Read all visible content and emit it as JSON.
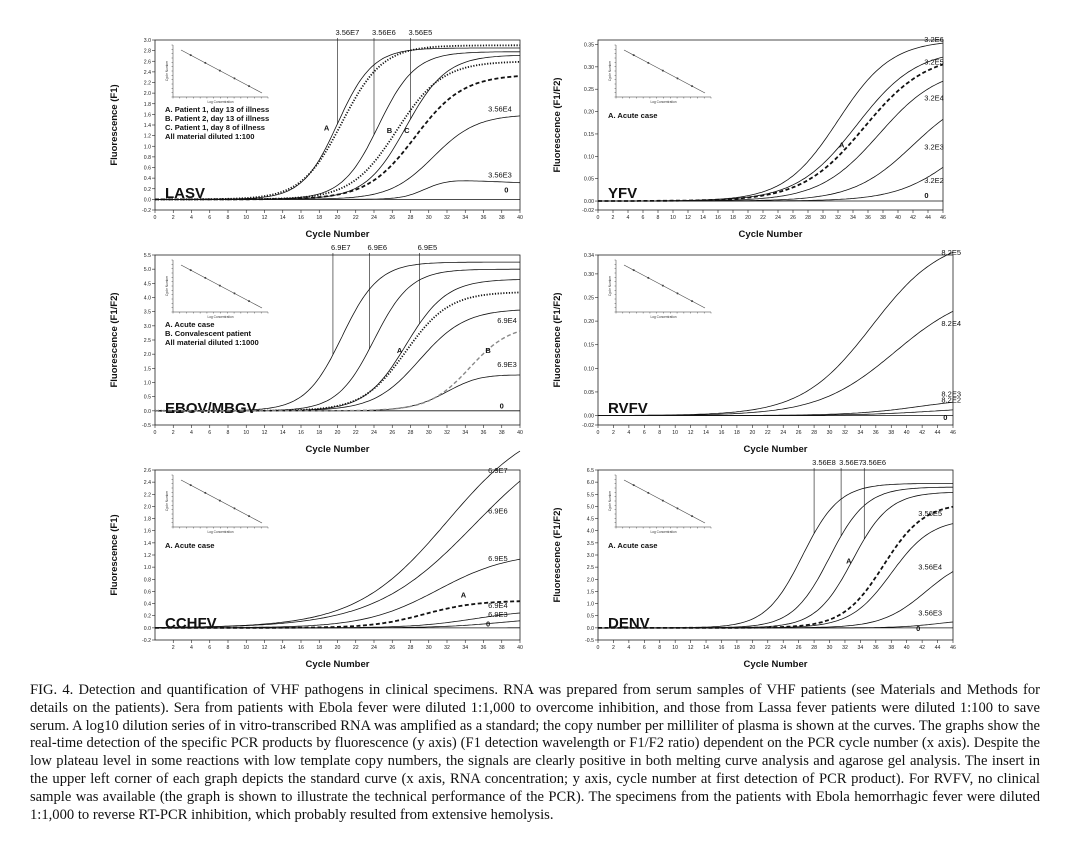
{
  "figure_caption": {
    "lines": [
      "FIG. 4. Detection and quantification of VHF pathogens in clinical specimens. RNA was prepared from serum samples of VHF patients (see",
      "Materials and Methods for details on the patients). Sera from patients with Ebola fever were diluted 1:1,000 to overcome inhibition, and those from",
      "Lassa fever patients were diluted 1:100 to save serum. A log10 dilution series of in vitro-transcribed RNA was amplified as a standard; the copy",
      "number per milliliter of plasma is shown at the curves. The graphs show the real-time detection of the specific PCR products by fluorescence (y",
      "axis) (F1 detection wavelength or F1/F2 ratio) dependent on the PCR cycle number (x axis). Despite the low plateau level in some reactions with",
      "low template copy numbers, the signals are clearly positive in both melting curve analysis and agarose gel analysis. The insert in the upper left",
      "corner of each graph depicts the standard curve (x axis, RNA concentration; y axis, cycle number at first detection of PCR product). For RVFV,",
      "no clinical sample was available (the graph is shown to illustrate the technical performance of the PCR). The specimens from the patients with",
      "Ebola hemorrhagic fever were diluted 1:1,000 to reverse RT-PCR inhibition, which probably resulted from extensive hemolysis."
    ]
  },
  "inset_labels": {
    "x": "Log Concentration",
    "y": "Cycle Number"
  },
  "chart_data": [
    {
      "type": "line",
      "title": "LASV",
      "xlabel": "Cycle Number",
      "ylabel": "Fluorescence (F1)",
      "xlim": [
        0,
        40
      ],
      "ylim": [
        -0.2,
        3.0
      ],
      "xticks": [
        0,
        2,
        4,
        6,
        8,
        10,
        12,
        14,
        16,
        18,
        20,
        22,
        24,
        26,
        28,
        30,
        32,
        34,
        36,
        38,
        40
      ],
      "yticks": [
        -0.2,
        0,
        0.2,
        0.4,
        0.6,
        0.8,
        1.0,
        1.2,
        1.4,
        1.6,
        1.8,
        2.0,
        2.2,
        2.4,
        2.6,
        2.8,
        3.0
      ],
      "ytick_decimals": 1,
      "series": [
        {
          "name": "3.56E7",
          "style": "solid",
          "mid": 20,
          "k": 0.52,
          "top": 2.85,
          "label_x": 36.5,
          "label_y": 2.9,
          "leader_x": 20
        },
        {
          "name": "3.56E6",
          "style": "solid",
          "mid": 24.5,
          "k": 0.5,
          "top": 2.78,
          "leader_x": 24
        },
        {
          "name": "3.56E5",
          "style": "solid",
          "mid": 27.5,
          "k": 0.45,
          "top": 2.72,
          "leader_x": 28
        },
        {
          "name": "3.56E4",
          "style": "solid",
          "mid": 30.5,
          "k": 0.42,
          "top": 1.6,
          "label_x": 36.5,
          "label_y": 1.65
        },
        {
          "name": "3.56E3",
          "style": "solid",
          "mid": 29.5,
          "k": 0.8,
          "top": 0.37,
          "decline": 0.06,
          "label_x": 36.5,
          "label_y": 0.41
        },
        {
          "name": "0",
          "style": "solid",
          "mid": 60,
          "k": 0.2,
          "top": 0.02,
          "label_x": 38.5,
          "label_y": 0.13
        },
        {
          "name": "A",
          "style": "dotted",
          "mid": 20.5,
          "k": 0.45,
          "top": 2.9,
          "label_x": 18.8,
          "label_y": 1.3
        },
        {
          "name": "B",
          "style": "dotted",
          "mid": 26.5,
          "k": 0.4,
          "top": 2.6,
          "label_x": 25.7,
          "label_y": 1.25
        },
        {
          "name": "C",
          "style": "dashed",
          "mid": 28.5,
          "k": 0.38,
          "top": 2.35,
          "label_x": 27.6,
          "label_y": 1.25
        }
      ],
      "legend_lines": [
        "A. Patient 1, day 13 of illness",
        "B. Patient 2, day 13 of illness",
        "C. Patient 1, day 8 of illness",
        "All material diluted 1:100"
      ]
    },
    {
      "type": "line",
      "title": "YFV",
      "xlabel": "Cycle Number",
      "ylabel": "Fluorescence (F1/F2)",
      "xlim": [
        0,
        46
      ],
      "ylim": [
        -0.02,
        0.36
      ],
      "xticks": [
        0,
        2,
        4,
        6,
        8,
        10,
        12,
        14,
        16,
        18,
        20,
        22,
        24,
        26,
        28,
        30,
        32,
        34,
        36,
        38,
        40,
        42,
        44,
        46
      ],
      "yticks": [
        -0.02,
        0,
        0.05,
        0.1,
        0.15,
        0.2,
        0.25,
        0.3,
        0.35
      ],
      "ytick_decimals": 2,
      "series": [
        {
          "name": "3.2E6",
          "style": "solid",
          "mid": 32,
          "k": 0.28,
          "top": 0.36,
          "label_x": 43.5,
          "label_y": 0.355
        },
        {
          "name": "3.2E5",
          "style": "solid",
          "mid": 34.5,
          "k": 0.25,
          "top": 0.34,
          "label_x": 43.5,
          "label_y": 0.305
        },
        {
          "name": "3.2E4",
          "style": "solid",
          "mid": 37.5,
          "k": 0.25,
          "top": 0.3,
          "label_x": 43.5,
          "label_y": 0.225
        },
        {
          "name": "3.2E3",
          "style": "solid",
          "mid": 42,
          "k": 0.25,
          "top": 0.25,
          "label_x": 43.5,
          "label_y": 0.115
        },
        {
          "name": "3.2E2",
          "style": "solid",
          "mid": 48,
          "k": 0.25,
          "top": 0.2,
          "label_x": 43.5,
          "label_y": 0.04
        },
        {
          "name": "0",
          "style": "solid",
          "mid": 90,
          "k": 0.1,
          "top": 0.01,
          "label_x": 43.8,
          "label_y": 0.007
        },
        {
          "name": "A",
          "style": "dashed",
          "mid": 35.5,
          "k": 0.24,
          "top": 0.33,
          "label_x": 32.5,
          "label_y": 0.12
        }
      ],
      "legend_lines": [
        "A. Acute case"
      ]
    },
    {
      "type": "line",
      "title": "EBOV/MBGV",
      "xlabel": "Cycle Number",
      "ylabel": "Fluorescence (F1/F2)",
      "xlim": [
        0,
        40
      ],
      "ylim": [
        -0.5,
        5.5
      ],
      "xticks": [
        0,
        2,
        4,
        6,
        8,
        10,
        12,
        14,
        16,
        18,
        20,
        22,
        24,
        26,
        28,
        30,
        32,
        34,
        36,
        38,
        40
      ],
      "yticks": [
        -0.5,
        0,
        0.5,
        1.0,
        1.5,
        2.0,
        2.5,
        3.0,
        3.5,
        4.0,
        4.5,
        5.0,
        5.5
      ],
      "ytick_decimals": 1,
      "series": [
        {
          "name": "6.9E7",
          "style": "solid",
          "mid": 20.5,
          "k": 0.5,
          "top": 5.25,
          "leader_x": 19.5
        },
        {
          "name": "6.9E6",
          "style": "solid",
          "mid": 24,
          "k": 0.5,
          "top": 5.0,
          "leader_x": 23.5
        },
        {
          "name": "6.9E5",
          "style": "solid",
          "mid": 27.5,
          "k": 0.45,
          "top": 4.65,
          "leader_x": 29
        },
        {
          "name": "6.9E4",
          "style": "solid",
          "mid": 29,
          "k": 0.4,
          "top": 3.6,
          "label_x": 37.5,
          "label_y": 3.1
        },
        {
          "name": "6.9E3",
          "style": "solid",
          "mid": 32,
          "k": 0.5,
          "top": 1.35,
          "decline": 0.1,
          "label_x": 37.5,
          "label_y": 1.55
        },
        {
          "name": "0",
          "style": "solid",
          "mid": 90,
          "k": 0.1,
          "top": 0.02,
          "label_x": 38,
          "label_y": 0.08
        },
        {
          "name": "A",
          "style": "dotted",
          "mid": 27.5,
          "k": 0.42,
          "top": 4.2,
          "label_x": 26.8,
          "label_y": 2.05
        },
        {
          "name": "B",
          "style": "dashed-gray",
          "mid": 34.5,
          "k": 0.45,
          "top": 3.05,
          "label_x": 36.5,
          "label_y": 2.05
        }
      ],
      "legend_lines": [
        "A. Acute case",
        "B. Convalescent patient",
        "All material diluted 1:1000"
      ]
    },
    {
      "type": "line",
      "title": "RVFV",
      "xlabel": "Cycle Number",
      "ylabel": "Fluorescence (F1/F2)",
      "xlim": [
        0,
        46
      ],
      "ylim": [
        -0.02,
        0.34
      ],
      "xticks": [
        0,
        2,
        4,
        6,
        8,
        10,
        12,
        14,
        16,
        18,
        20,
        22,
        24,
        26,
        28,
        30,
        32,
        34,
        36,
        38,
        40,
        42,
        44,
        46
      ],
      "yticks": [
        -0.02,
        0,
        0.05,
        0.1,
        0.15,
        0.2,
        0.25,
        0.3,
        0.34
      ],
      "ytick_decimals": 2,
      "series": [
        {
          "name": "8.2E5",
          "style": "solid",
          "mid": 35.5,
          "k": 0.22,
          "top": 0.38,
          "label_x": 44.5,
          "label_y": 0.34
        },
        {
          "name": "8.2E4",
          "style": "solid",
          "mid": 38.5,
          "k": 0.2,
          "top": 0.27,
          "label_x": 44.5,
          "label_y": 0.19
        },
        {
          "name": "8.2E3",
          "style": "solid",
          "mid": 42,
          "k": 0.22,
          "top": 0.04,
          "label_x": 44.5,
          "label_y": 0.04
        },
        {
          "name": "8.2E2",
          "style": "solid",
          "mid": 44,
          "k": 0.2,
          "top": 0.02,
          "label_x": 44.5,
          "label_y": 0.028
        },
        {
          "name": "0",
          "style": "solid",
          "mid": 90,
          "k": 0.1,
          "top": 0.005,
          "label_x": 45,
          "label_y": -0.009
        }
      ],
      "legend_lines": []
    },
    {
      "type": "line",
      "title": "CCHFV",
      "xlabel": "Cycle Number",
      "ylabel": "Fluorescence (F1)",
      "xlim": [
        0,
        40
      ],
      "ylim": [
        -0.2,
        2.6
      ],
      "xticks": [
        2,
        4,
        6,
        8,
        10,
        12,
        14,
        16,
        18,
        20,
        22,
        24,
        26,
        28,
        30,
        32,
        34,
        36,
        38,
        40
      ],
      "yticks": [
        -0.2,
        0,
        0.2,
        0.4,
        0.6,
        0.8,
        1.0,
        1.2,
        1.4,
        1.6,
        1.8,
        2.0,
        2.2,
        2.4,
        2.6
      ],
      "ytick_decimals": 1,
      "series": [
        {
          "name": "6.9E7",
          "style": "solid",
          "mid": 32,
          "k": 0.2,
          "top": 3.5,
          "label_x": 36.5,
          "label_y": 2.55
        },
        {
          "name": "6.9E6",
          "style": "solid",
          "mid": 35,
          "k": 0.18,
          "top": 3.4,
          "label_x": 36.5,
          "label_y": 1.88
        },
        {
          "name": "6.9E5",
          "style": "solid",
          "mid": 31,
          "k": 0.25,
          "top": 1.25,
          "label_x": 36.5,
          "label_y": 1.1
        },
        {
          "name": "6.9E4",
          "style": "solid",
          "mid": 35,
          "k": 0.3,
          "top": 0.3,
          "label_x": 36.5,
          "label_y": 0.33
        },
        {
          "name": "6.9E3",
          "style": "solid",
          "mid": 38,
          "k": 0.3,
          "top": 0.18,
          "label_x": 36.5,
          "label_y": 0.18
        },
        {
          "name": "0",
          "style": "solid",
          "mid": 90,
          "k": 0.1,
          "top": 0.02,
          "label_x": 36.5,
          "label_y": 0.02
        },
        {
          "name": "A",
          "style": "dashed",
          "mid": 29.5,
          "k": 0.35,
          "top": 0.45,
          "label_x": 33.8,
          "label_y": 0.5
        }
      ],
      "legend_lines": [
        "A. Acute case"
      ]
    },
    {
      "type": "line",
      "title": "DENV",
      "xlabel": "Cycle Number",
      "ylabel": "Fluorescence (F1/F2)",
      "xlim": [
        0,
        46
      ],
      "ylim": [
        -0.5,
        6.5
      ],
      "xticks": [
        0,
        2,
        4,
        6,
        8,
        10,
        12,
        14,
        16,
        18,
        20,
        22,
        24,
        26,
        28,
        30,
        32,
        34,
        36,
        38,
        40,
        42,
        44,
        46
      ],
      "yticks": [
        -0.5,
        0,
        0.5,
        1.0,
        1.5,
        2.0,
        2.5,
        3.0,
        3.5,
        4.0,
        4.5,
        5.0,
        5.5,
        6.0,
        6.5
      ],
      "ytick_decimals": 1,
      "series": [
        {
          "name": "3.56E8",
          "style": "solid",
          "mid": 26.5,
          "k": 0.42,
          "top": 5.95,
          "leader_x": 28
        },
        {
          "name": "3.56E7",
          "style": "solid",
          "mid": 30,
          "k": 0.42,
          "top": 5.8,
          "leader_x": 31.5
        },
        {
          "name": "3.56E6",
          "style": "solid",
          "mid": 33,
          "k": 0.42,
          "top": 5.6,
          "leader_x": 34.5
        },
        {
          "name": "3.56E5",
          "style": "solid",
          "mid": 38,
          "k": 0.38,
          "top": 4.5,
          "label_x": 41.5,
          "label_y": 4.6
        },
        {
          "name": "3.56E4",
          "style": "solid",
          "mid": 42.5,
          "k": 0.35,
          "top": 3.0,
          "label_x": 41.5,
          "label_y": 2.4
        },
        {
          "name": "3.56E3",
          "style": "solid",
          "mid": 44,
          "k": 0.4,
          "top": 0.35,
          "label_x": 41.5,
          "label_y": 0.5
        },
        {
          "name": "0",
          "style": "solid",
          "mid": 90,
          "k": 0.1,
          "top": 0.02,
          "label_x": 41.5,
          "label_y": -0.12
        },
        {
          "name": "A",
          "style": "dashed",
          "mid": 37,
          "k": 0.38,
          "top": 5.15,
          "label_x": 32.5,
          "label_y": 2.65
        }
      ],
      "legend_lines": [
        "A. Acute case"
      ]
    }
  ]
}
